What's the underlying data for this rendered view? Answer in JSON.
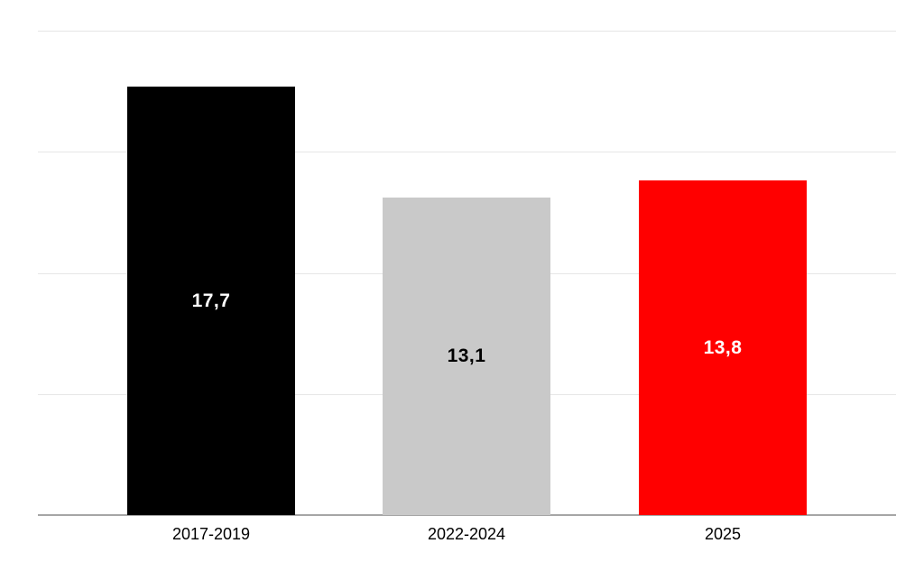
{
  "chart_data": {
    "type": "bar",
    "categories": [
      "2017-2019",
      "2022-2024",
      "2025"
    ],
    "values": [
      17.7,
      13.1,
      13.8
    ],
    "value_labels": [
      "17,7",
      "13,1",
      "13,8"
    ],
    "ylim": [
      0,
      20
    ],
    "gridline_values": [
      5,
      10,
      15,
      20
    ],
    "grid": true,
    "legend": false,
    "bar_colors": [
      "#000000",
      "#c9c9c9",
      "#ff0000"
    ],
    "value_label_colors": [
      "#ffffff",
      "#000000",
      "#ffffff"
    ],
    "category_label_color": "#000000",
    "gridline_color": "#e6e6e6",
    "axis_line_color": "#a6a6a6",
    "background_color": "#ffffff"
  }
}
